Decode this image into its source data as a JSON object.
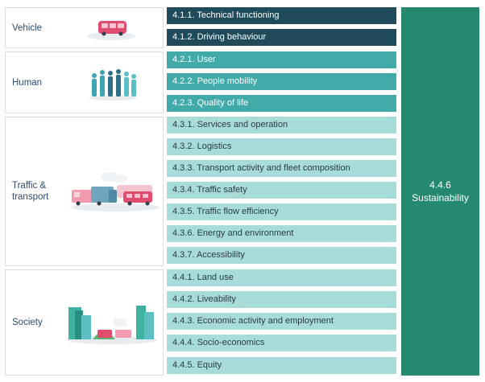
{
  "sections": {
    "vehicle": {
      "label": "Vehicle"
    },
    "human": {
      "label": "Human"
    },
    "traffic": {
      "label_line1": "Traffic &",
      "label_line2": "transport"
    },
    "society": {
      "label": "Society"
    }
  },
  "bars": {
    "b411": "4.1.1. Technical functioning",
    "b412": "4.1.2. Driving behaviour",
    "b421": "4.2.1. User",
    "b422": "4.2.2. People mobility",
    "b423": "4.2.3. Quality of life",
    "b431": "4.3.1. Services and operation",
    "b432": "4.3.2. Logistics",
    "b433": "4.3.3. Transport activity and fleet composition",
    "b434": "4.3.4. Traffic safety",
    "b435": "4.3.5. Traffic flow efficiency",
    "b436": "4.3.6. Energy and environment",
    "b437": "4.3.7. Accessibility",
    "b441": "4.4.1. Land use",
    "b442": "4.4.2. Liveability",
    "b443": "4.4.3. Economic activity and employment",
    "b444": "4.4.4. Socio-economics",
    "b445": "4.4.5. Equity"
  },
  "sustainability": {
    "line1": "4.4.6",
    "line2": "Sustainability"
  },
  "colors": {
    "dark_bar": "#1f4a5a",
    "mid_bar": "#42aaa9",
    "light_bar": "#a8dcd8",
    "sustainability": "#24896f",
    "label_text": "#2e4a6e",
    "vehicle_pink": "#e04c6e"
  },
  "icons": {
    "vehicle": "bus-illustration",
    "human": "people-group-illustration",
    "traffic": "trucks-and-buses-illustration",
    "society": "city-skyline-illustration"
  }
}
